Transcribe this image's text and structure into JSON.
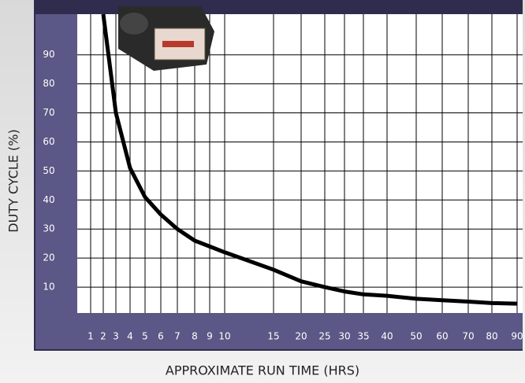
{
  "chart_data": {
    "type": "line",
    "x_label": "APPROXIMATE RUN TIME (HRS)",
    "y_label": "DUTY CYCLE (%)",
    "categories": [
      "1",
      "2",
      "3",
      "4",
      "5",
      "6",
      "7",
      "8",
      "9",
      "10",
      "15",
      "20",
      "25",
      "30",
      "35",
      "40",
      "50",
      "60",
      "70",
      "80",
      "90"
    ],
    "series": [
      {
        "color": "#000000",
        "values": [
          null,
          104,
          70,
          51,
          41,
          35,
          30,
          26,
          24,
          22,
          16,
          12,
          10,
          8.5,
          7.5,
          7,
          6,
          5.5,
          5,
          4.5,
          4.3
        ]
      }
    ],
    "ylim": [
      0,
      104
    ],
    "yticks": [
      10,
      20,
      30,
      40,
      50,
      60,
      70,
      80,
      90
    ],
    "grid": true
  }
}
